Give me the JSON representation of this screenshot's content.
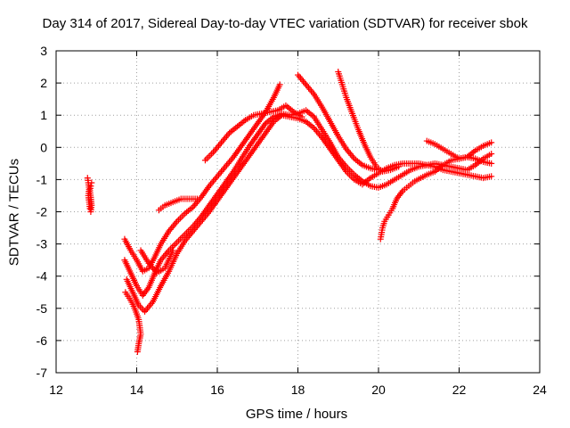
{
  "chart_data": {
    "type": "scatter",
    "title": "Day 314 of 2017, Sidereal Day-to-day VTEC variation (SDTVAR) for receiver sbok",
    "xlabel": "GPS time / hours",
    "ylabel": "SDTVAR / TECUs",
    "xlim": [
      12,
      24
    ],
    "ylim": [
      -7,
      3
    ],
    "xticks": [
      "12",
      "14",
      "16",
      "18",
      "20",
      "22",
      "24"
    ],
    "yticks": [
      "-7",
      "-6",
      "-5",
      "-4",
      "-3",
      "-2",
      "-1",
      "0",
      "1",
      "2",
      "3"
    ],
    "grid": true,
    "marker": "+",
    "series_color": "#ff0000",
    "series": [
      {
        "name": "track-1",
        "points": [
          [
            12.78,
            -0.95
          ],
          [
            12.8,
            -1.1
          ],
          [
            12.82,
            -1.3
          ],
          [
            12.8,
            -1.5
          ],
          [
            12.82,
            -1.7
          ],
          [
            12.84,
            -1.9
          ],
          [
            12.86,
            -2.0
          ],
          [
            12.88,
            -1.8
          ],
          [
            12.86,
            -1.55
          ],
          [
            12.84,
            -1.35
          ],
          [
            12.86,
            -1.2
          ],
          [
            12.88,
            -1.1
          ]
        ]
      },
      {
        "name": "track-2",
        "points": [
          [
            13.7,
            -2.85
          ],
          [
            13.85,
            -3.2
          ],
          [
            14.0,
            -3.5
          ],
          [
            14.15,
            -3.85
          ],
          [
            14.3,
            -3.75
          ],
          [
            14.45,
            -3.4
          ],
          [
            14.6,
            -3.0
          ],
          [
            14.8,
            -2.6
          ],
          [
            15.0,
            -2.3
          ],
          [
            15.2,
            -2.05
          ],
          [
            15.4,
            -1.85
          ],
          [
            15.6,
            -1.55
          ],
          [
            15.8,
            -1.2
          ],
          [
            16.0,
            -0.9
          ],
          [
            16.2,
            -0.6
          ],
          [
            16.4,
            -0.3
          ],
          [
            16.6,
            0.05
          ],
          [
            16.8,
            0.4
          ],
          [
            17.0,
            0.75
          ],
          [
            17.2,
            1.1
          ],
          [
            17.4,
            1.55
          ],
          [
            17.55,
            1.95
          ]
        ]
      },
      {
        "name": "track-3",
        "points": [
          [
            13.7,
            -3.5
          ],
          [
            13.85,
            -3.9
          ],
          [
            14.0,
            -4.3
          ],
          [
            14.15,
            -4.6
          ],
          [
            14.3,
            -4.35
          ],
          [
            14.45,
            -3.9
          ],
          [
            14.6,
            -3.5
          ],
          [
            14.8,
            -3.2
          ],
          [
            15.0,
            -2.95
          ],
          [
            15.2,
            -2.7
          ],
          [
            15.4,
            -2.45
          ],
          [
            15.6,
            -2.15
          ],
          [
            15.8,
            -1.8
          ],
          [
            16.0,
            -1.45
          ],
          [
            16.2,
            -1.1
          ],
          [
            16.4,
            -0.75
          ],
          [
            16.6,
            -0.35
          ],
          [
            16.8,
            0.05
          ],
          [
            17.0,
            0.4
          ],
          [
            17.2,
            0.75
          ],
          [
            17.4,
            0.95
          ],
          [
            17.6,
            1.05
          ],
          [
            17.8,
            1.0
          ],
          [
            18.0,
            1.05
          ],
          [
            18.2,
            1.15
          ],
          [
            18.4,
            0.95
          ],
          [
            18.6,
            0.55
          ],
          [
            18.8,
            0.15
          ],
          [
            19.0,
            -0.3
          ],
          [
            19.2,
            -0.6
          ],
          [
            19.4,
            -0.85
          ],
          [
            19.6,
            -1.05
          ],
          [
            19.8,
            -1.2
          ],
          [
            20.0,
            -1.25
          ],
          [
            20.2,
            -1.15
          ],
          [
            20.4,
            -1.0
          ],
          [
            20.6,
            -0.85
          ],
          [
            20.8,
            -0.7
          ],
          [
            21.0,
            -0.6
          ],
          [
            21.2,
            -0.55
          ],
          [
            21.4,
            -0.5
          ],
          [
            21.6,
            -0.55
          ],
          [
            21.8,
            -0.6
          ],
          [
            22.0,
            -0.65
          ],
          [
            22.2,
            -0.7
          ],
          [
            22.4,
            -0.55
          ],
          [
            22.6,
            -0.35
          ],
          [
            22.8,
            -0.2
          ]
        ]
      },
      {
        "name": "track-4",
        "points": [
          [
            13.75,
            -4.1
          ],
          [
            13.9,
            -4.5
          ],
          [
            14.05,
            -4.9
          ],
          [
            14.2,
            -5.1
          ],
          [
            14.4,
            -4.8
          ],
          [
            14.6,
            -4.3
          ],
          [
            14.8,
            -3.85
          ],
          [
            15.0,
            -3.3
          ],
          [
            15.2,
            -2.9
          ],
          [
            15.4,
            -2.6
          ],
          [
            15.6,
            -2.3
          ],
          [
            15.8,
            -2.0
          ],
          [
            16.0,
            -1.65
          ],
          [
            16.2,
            -1.3
          ],
          [
            16.4,
            -0.95
          ],
          [
            16.6,
            -0.6
          ],
          [
            16.8,
            -0.25
          ],
          [
            17.0,
            0.1
          ],
          [
            17.2,
            0.45
          ],
          [
            17.4,
            0.8
          ],
          [
            17.6,
            1.0
          ],
          [
            17.8,
            0.95
          ],
          [
            18.0,
            0.9
          ],
          [
            18.2,
            0.8
          ],
          [
            18.4,
            0.6
          ],
          [
            18.6,
            0.3
          ],
          [
            18.8,
            -0.05
          ],
          [
            19.0,
            -0.4
          ],
          [
            19.2,
            -0.75
          ],
          [
            19.4,
            -1.0
          ],
          [
            19.6,
            -1.15
          ],
          [
            19.8,
            -0.95
          ],
          [
            20.0,
            -0.8
          ],
          [
            20.2,
            -0.65
          ],
          [
            20.4,
            -0.55
          ],
          [
            20.6,
            -0.5
          ],
          [
            20.8,
            -0.5
          ],
          [
            21.0,
            -0.5
          ],
          [
            21.2,
            -0.55
          ],
          [
            21.4,
            -0.6
          ],
          [
            21.6,
            -0.7
          ],
          [
            21.8,
            -0.75
          ],
          [
            22.0,
            -0.8
          ],
          [
            22.2,
            -0.85
          ],
          [
            22.4,
            -0.9
          ],
          [
            22.6,
            -0.95
          ],
          [
            22.8,
            -0.9
          ]
        ]
      },
      {
        "name": "track-5",
        "points": [
          [
            13.72,
            -4.5
          ],
          [
            13.85,
            -4.75
          ],
          [
            13.95,
            -5.0
          ],
          [
            14.05,
            -5.35
          ],
          [
            14.1,
            -5.8
          ],
          [
            14.05,
            -6.1
          ],
          [
            14.02,
            -6.35
          ]
        ]
      },
      {
        "name": "track-6",
        "points": [
          [
            14.55,
            -1.95
          ],
          [
            14.7,
            -1.8
          ],
          [
            14.9,
            -1.7
          ],
          [
            15.1,
            -1.6
          ],
          [
            15.3,
            -1.6
          ],
          [
            15.5,
            -1.6
          ]
        ]
      },
      {
        "name": "track-7",
        "points": [
          [
            15.7,
            -0.4
          ],
          [
            15.9,
            -0.15
          ],
          [
            16.1,
            0.15
          ],
          [
            16.3,
            0.45
          ],
          [
            16.5,
            0.65
          ],
          [
            16.7,
            0.85
          ],
          [
            16.9,
            1.0
          ],
          [
            17.1,
            1.05
          ],
          [
            17.3,
            1.1
          ],
          [
            17.5,
            1.15
          ],
          [
            17.7,
            1.3
          ],
          [
            17.9,
            1.1
          ],
          [
            18.1,
            0.95
          ]
        ]
      },
      {
        "name": "track-8",
        "points": [
          [
            18.0,
            2.25
          ],
          [
            18.2,
            1.95
          ],
          [
            18.4,
            1.65
          ],
          [
            18.6,
            1.25
          ],
          [
            18.8,
            0.8
          ],
          [
            19.0,
            0.35
          ],
          [
            19.2,
            -0.05
          ],
          [
            19.4,
            -0.35
          ],
          [
            19.6,
            -0.55
          ],
          [
            19.8,
            -0.65
          ],
          [
            20.0,
            -0.7
          ]
        ]
      },
      {
        "name": "track-9",
        "points": [
          [
            19.0,
            2.35
          ],
          [
            19.1,
            1.95
          ],
          [
            19.2,
            1.55
          ],
          [
            19.35,
            1.05
          ],
          [
            19.5,
            0.55
          ],
          [
            19.65,
            0.1
          ],
          [
            19.8,
            -0.3
          ],
          [
            19.95,
            -0.6
          ],
          [
            20.1,
            -0.75
          ],
          [
            20.3,
            -0.7
          ],
          [
            20.5,
            -0.6
          ]
        ]
      },
      {
        "name": "track-10",
        "points": [
          [
            20.05,
            -2.85
          ],
          [
            20.1,
            -2.5
          ],
          [
            20.15,
            -2.3
          ],
          [
            20.25,
            -2.1
          ],
          [
            20.35,
            -1.9
          ],
          [
            20.45,
            -1.6
          ],
          [
            20.6,
            -1.35
          ],
          [
            20.75,
            -1.2
          ],
          [
            20.9,
            -1.05
          ],
          [
            21.05,
            -0.95
          ],
          [
            21.2,
            -0.85
          ],
          [
            21.4,
            -0.75
          ],
          [
            21.6,
            -0.55
          ],
          [
            21.8,
            -0.4
          ],
          [
            22.0,
            -0.35
          ],
          [
            22.2,
            -0.3
          ],
          [
            22.4,
            -0.35
          ],
          [
            22.6,
            -0.45
          ],
          [
            22.8,
            -0.5
          ]
        ]
      },
      {
        "name": "track-11",
        "points": [
          [
            21.2,
            0.2
          ],
          [
            21.4,
            0.1
          ],
          [
            21.6,
            -0.05
          ],
          [
            21.8,
            -0.2
          ],
          [
            22.0,
            -0.35
          ],
          [
            22.2,
            -0.3
          ],
          [
            22.4,
            -0.1
          ],
          [
            22.6,
            0.05
          ],
          [
            22.8,
            0.15
          ]
        ]
      },
      {
        "name": "track-12",
        "points": [
          [
            14.1,
            -3.2
          ],
          [
            14.3,
            -3.6
          ],
          [
            14.5,
            -3.9
          ],
          [
            14.7,
            -3.75
          ],
          [
            14.9,
            -3.2
          ]
        ]
      }
    ]
  }
}
